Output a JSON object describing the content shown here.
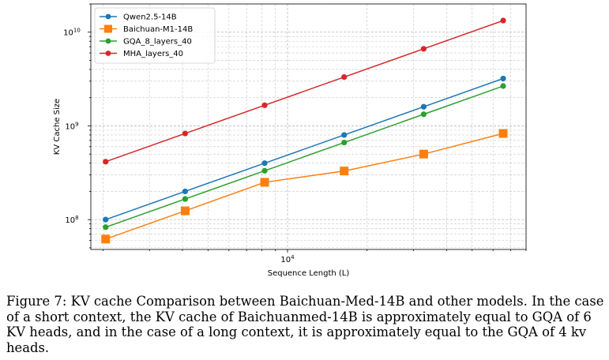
{
  "chart_data": {
    "type": "line",
    "xscale": "log",
    "yscale": "log",
    "xlabel": "Sequence Length (L)",
    "ylabel": "KV Cache Size",
    "xlim": [
      1800,
      80000
    ],
    "ylim": [
      48000000,
      20000000000
    ],
    "x": [
      2048,
      4096,
      8192,
      16384,
      32768,
      65536
    ],
    "x_ticks": [
      {
        "value": 10000,
        "base": "10",
        "exp": "4"
      }
    ],
    "y_ticks": [
      {
        "value": 100000000,
        "base": "10",
        "exp": "8"
      },
      {
        "value": 1000000000,
        "base": "10",
        "exp": "9"
      },
      {
        "value": 10000000000,
        "base": "10",
        "exp": "10"
      }
    ],
    "grid": true,
    "legend_position": "top-left",
    "series": [
      {
        "name": "Qwen2.5-14B",
        "color": "#1f77b4",
        "marker": "circle",
        "values": [
          100000000,
          200000000,
          400000000,
          800000000,
          1600000000,
          3200000000
        ]
      },
      {
        "name": "Baichuan-M1-14B",
        "color": "#ff7f0e",
        "marker": "square",
        "values": [
          62000000,
          124000000,
          250000000,
          330000000,
          500000000,
          830000000
        ]
      },
      {
        "name": "GQA_8_layers_40",
        "color": "#2ca02c",
        "marker": "circle",
        "values": [
          83000000,
          166000000,
          332000000,
          664000000,
          1330000000,
          2660000000
        ]
      },
      {
        "name": "MHA_layers_40",
        "color": "#d62728",
        "marker": "circle",
        "values": [
          415000000,
          830000000,
          1660000000,
          3320000000,
          6640000000,
          13300000000
        ]
      }
    ]
  },
  "caption": "Figure 7: KV cache Comparison between Baichuan-Med-14B and other models. In the case of a short context, the KV cache of Baichuanmed-14B is approximately equal to GQA of 6 KV heads, and in the case of a long context, it is approximately equal to the GQA of 4 kv heads."
}
